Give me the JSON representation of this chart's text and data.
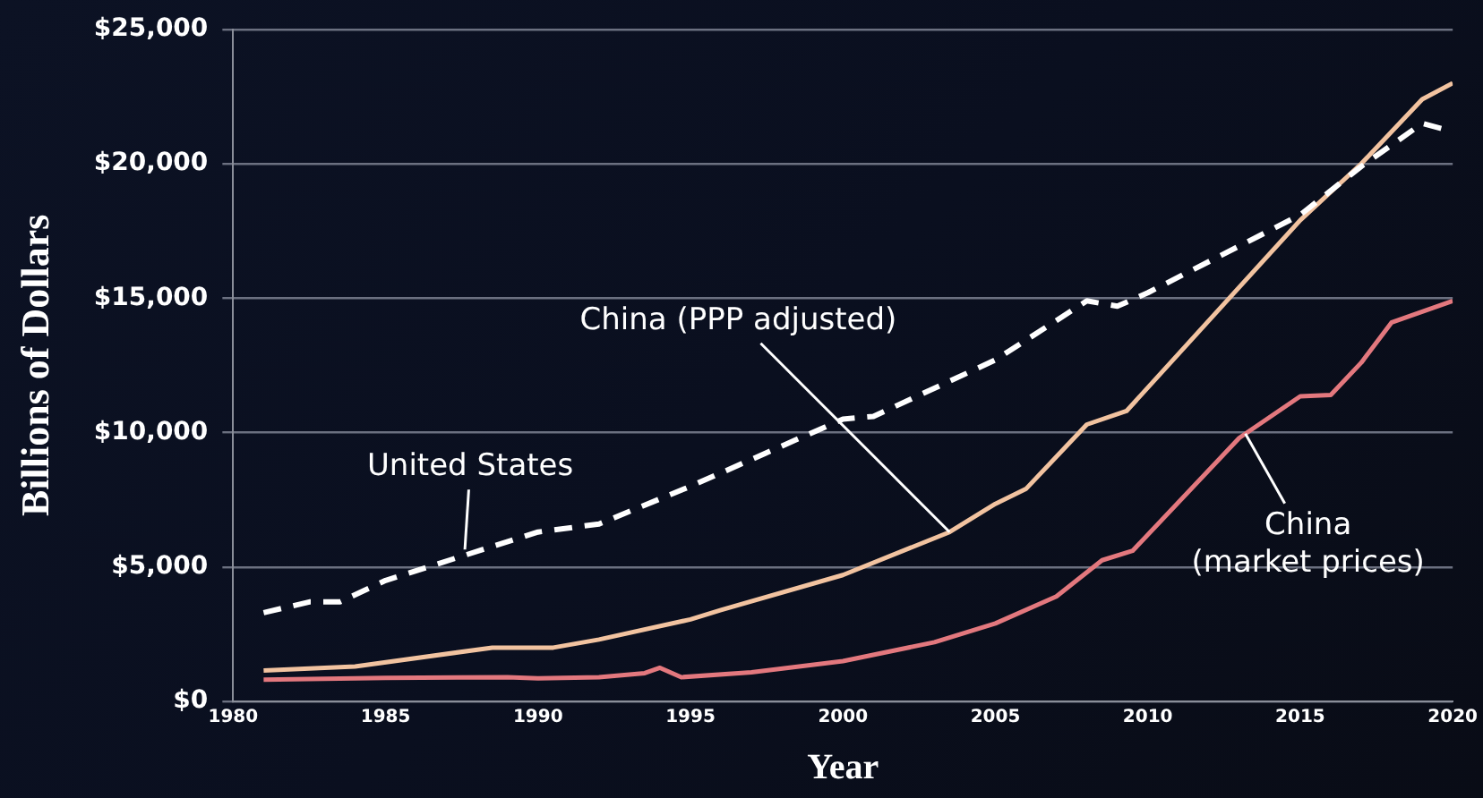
{
  "chart_data": {
    "type": "line",
    "xlabel": "Year",
    "ylabel": "Billions of Dollars",
    "xlim": [
      1980,
      2020
    ],
    "xticks": [
      1980,
      1985,
      1990,
      1995,
      2000,
      2005,
      2010,
      2015,
      2020
    ],
    "ylim": [
      0,
      25000
    ],
    "yticks": [
      {
        "value": 0,
        "label": "$0"
      },
      {
        "value": 5000,
        "label": "$5,000"
      },
      {
        "value": 10000,
        "label": "$10,000"
      },
      {
        "value": 15000,
        "label": "$15,000"
      },
      {
        "value": 20000,
        "label": "$20,000"
      },
      {
        "value": 25000,
        "label": "$25,000"
      }
    ],
    "grid": "y",
    "legend": false,
    "marker": "none",
    "series": [
      {
        "color": "#ffffff",
        "line_style": "dashed",
        "x": [
          1981,
          1982.5,
          1983.5,
          1985,
          1990,
          1992,
          1995,
          2000,
          2001,
          2005,
          2008,
          2009,
          2010,
          2015,
          2017,
          2019,
          2020
        ],
        "values": [
          3300,
          3700,
          3700,
          4500,
          6300,
          6600,
          8000,
          10500,
          10600,
          12700,
          14900,
          14700,
          15200,
          18100,
          19900,
          21500,
          21200
        ]
      },
      {
        "color": "#f2c3a0",
        "line_style": "solid",
        "x": [
          1981,
          1984,
          1988.5,
          1990.5,
          1992,
          1995,
          1996,
          2000,
          2003.5,
          2005,
          2006,
          2008,
          2009.3,
          2015,
          2017,
          2019,
          2020
        ],
        "values": [
          1150,
          1300,
          2000,
          2000,
          2300,
          3050,
          3400,
          4700,
          6300,
          7350,
          7900,
          10300,
          10800,
          17900,
          20000,
          22400,
          23000
        ]
      },
      {
        "color": "#e3787e",
        "line_style": "solid",
        "x": [
          1981,
          1985,
          1989,
          1990,
          1992,
          1993.5,
          1994,
          1994.7,
          1997,
          2000,
          2003,
          2005,
          2007,
          2008,
          2008.5,
          2009.5,
          2013,
          2015,
          2016,
          2017,
          2018,
          2019,
          2020
        ],
        "values": [
          810,
          870,
          900,
          860,
          900,
          1050,
          1250,
          900,
          1080,
          1500,
          2200,
          2900,
          3900,
          4800,
          5250,
          5600,
          9800,
          11350,
          11400,
          12600,
          14100,
          14500,
          14900
        ]
      }
    ],
    "annotations": [
      {
        "text": "United States",
        "x": 1987.6,
        "y": 5650
      },
      {
        "text": "China (PPP adjusted)",
        "x": 2003.5,
        "y": 6300
      },
      {
        "text": "China\n(market prices)",
        "x": 2013.2,
        "y": 9960
      }
    ]
  }
}
